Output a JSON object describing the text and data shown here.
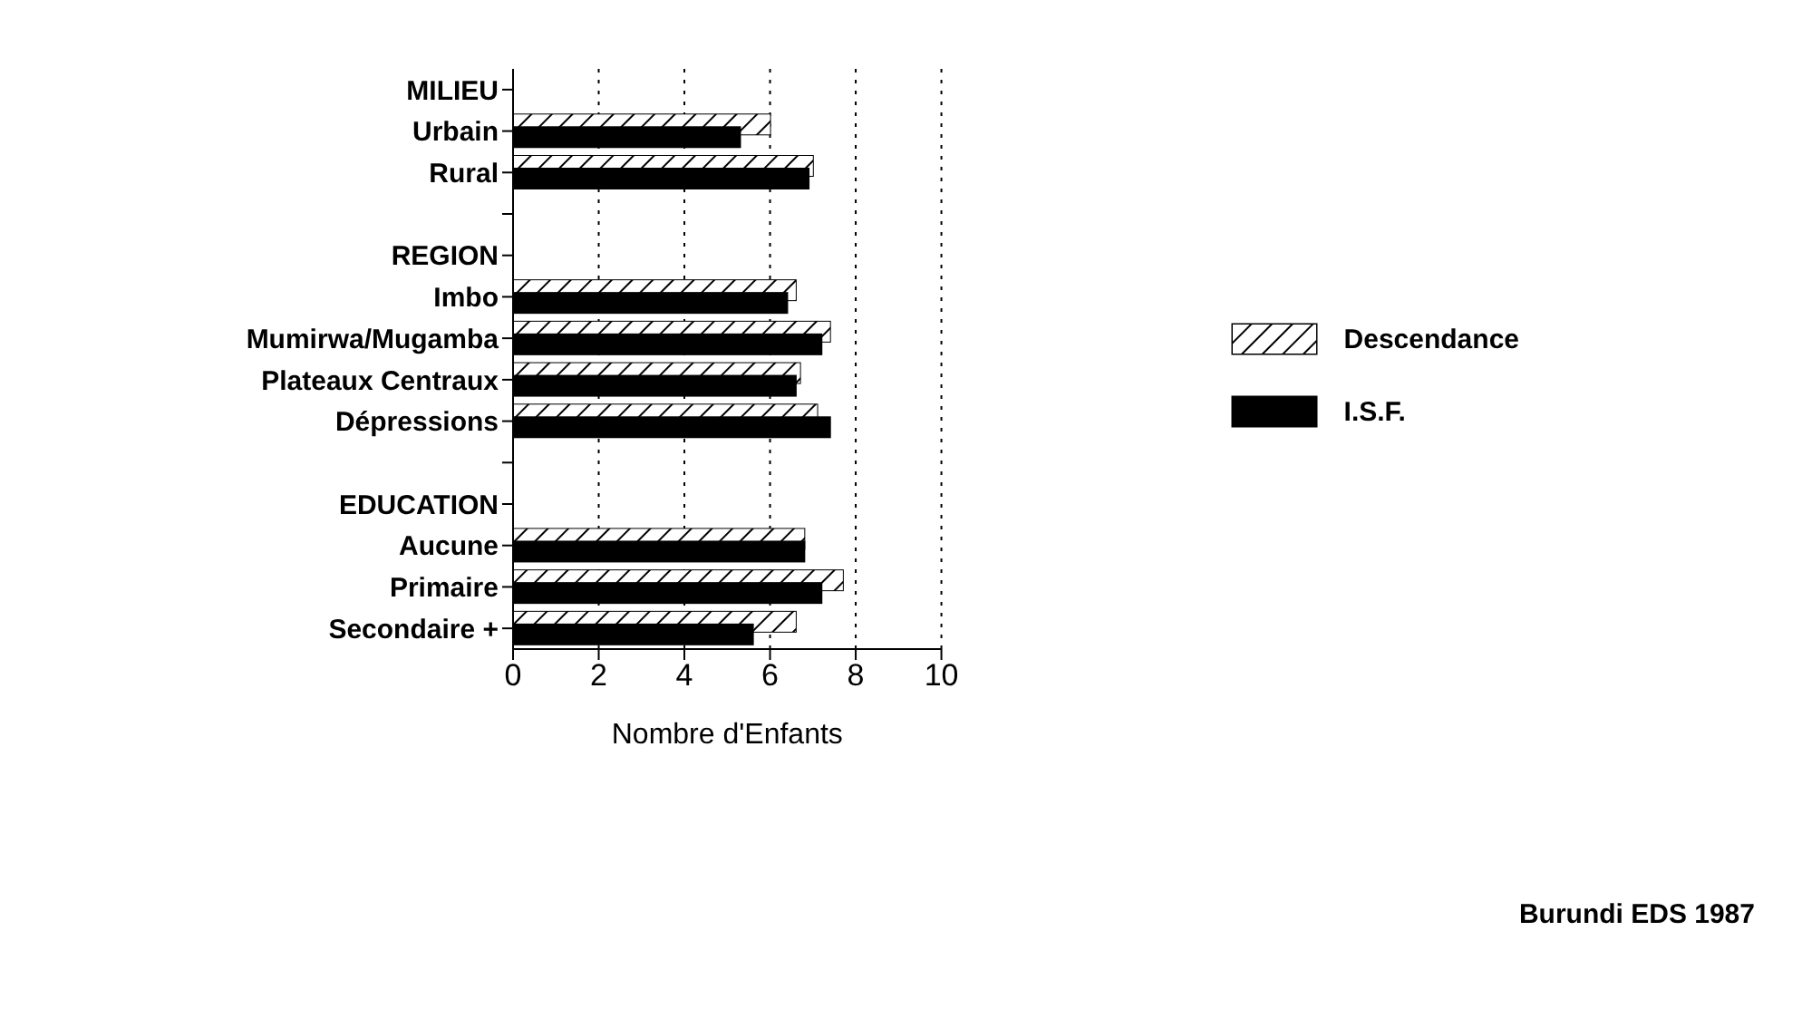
{
  "chart_data": {
    "type": "bar",
    "orientation": "horizontal",
    "xlabel": "Nombre d'Enfants",
    "categories": [
      "MILIEU",
      "Urbain",
      "Rural",
      null,
      "REGION",
      "Imbo",
      "Mumirwa/Mugamba",
      "Plateaux Centraux",
      "Dépressions",
      null,
      "EDUCATION",
      "Aucune",
      "Primaire",
      "Secondaire +"
    ],
    "series": [
      {
        "name": "Descendance",
        "color": "#ffffff",
        "values": [
          null,
          6.0,
          7.0,
          null,
          null,
          6.6,
          7.4,
          6.7,
          7.1,
          null,
          null,
          6.8,
          7.7,
          6.6
        ]
      },
      {
        "name": "I.S.F.",
        "color": "#000000",
        "values": [
          null,
          5.3,
          6.9,
          null,
          null,
          6.4,
          7.2,
          6.6,
          7.4,
          null,
          null,
          6.8,
          7.2,
          5.6
        ]
      }
    ],
    "xlim": [
      0,
      10
    ],
    "xticks": [
      0,
      2,
      4,
      6,
      8,
      10
    ],
    "grid": "x",
    "legend": "right",
    "annotations": [
      "Burundi EDS 1987"
    ]
  }
}
